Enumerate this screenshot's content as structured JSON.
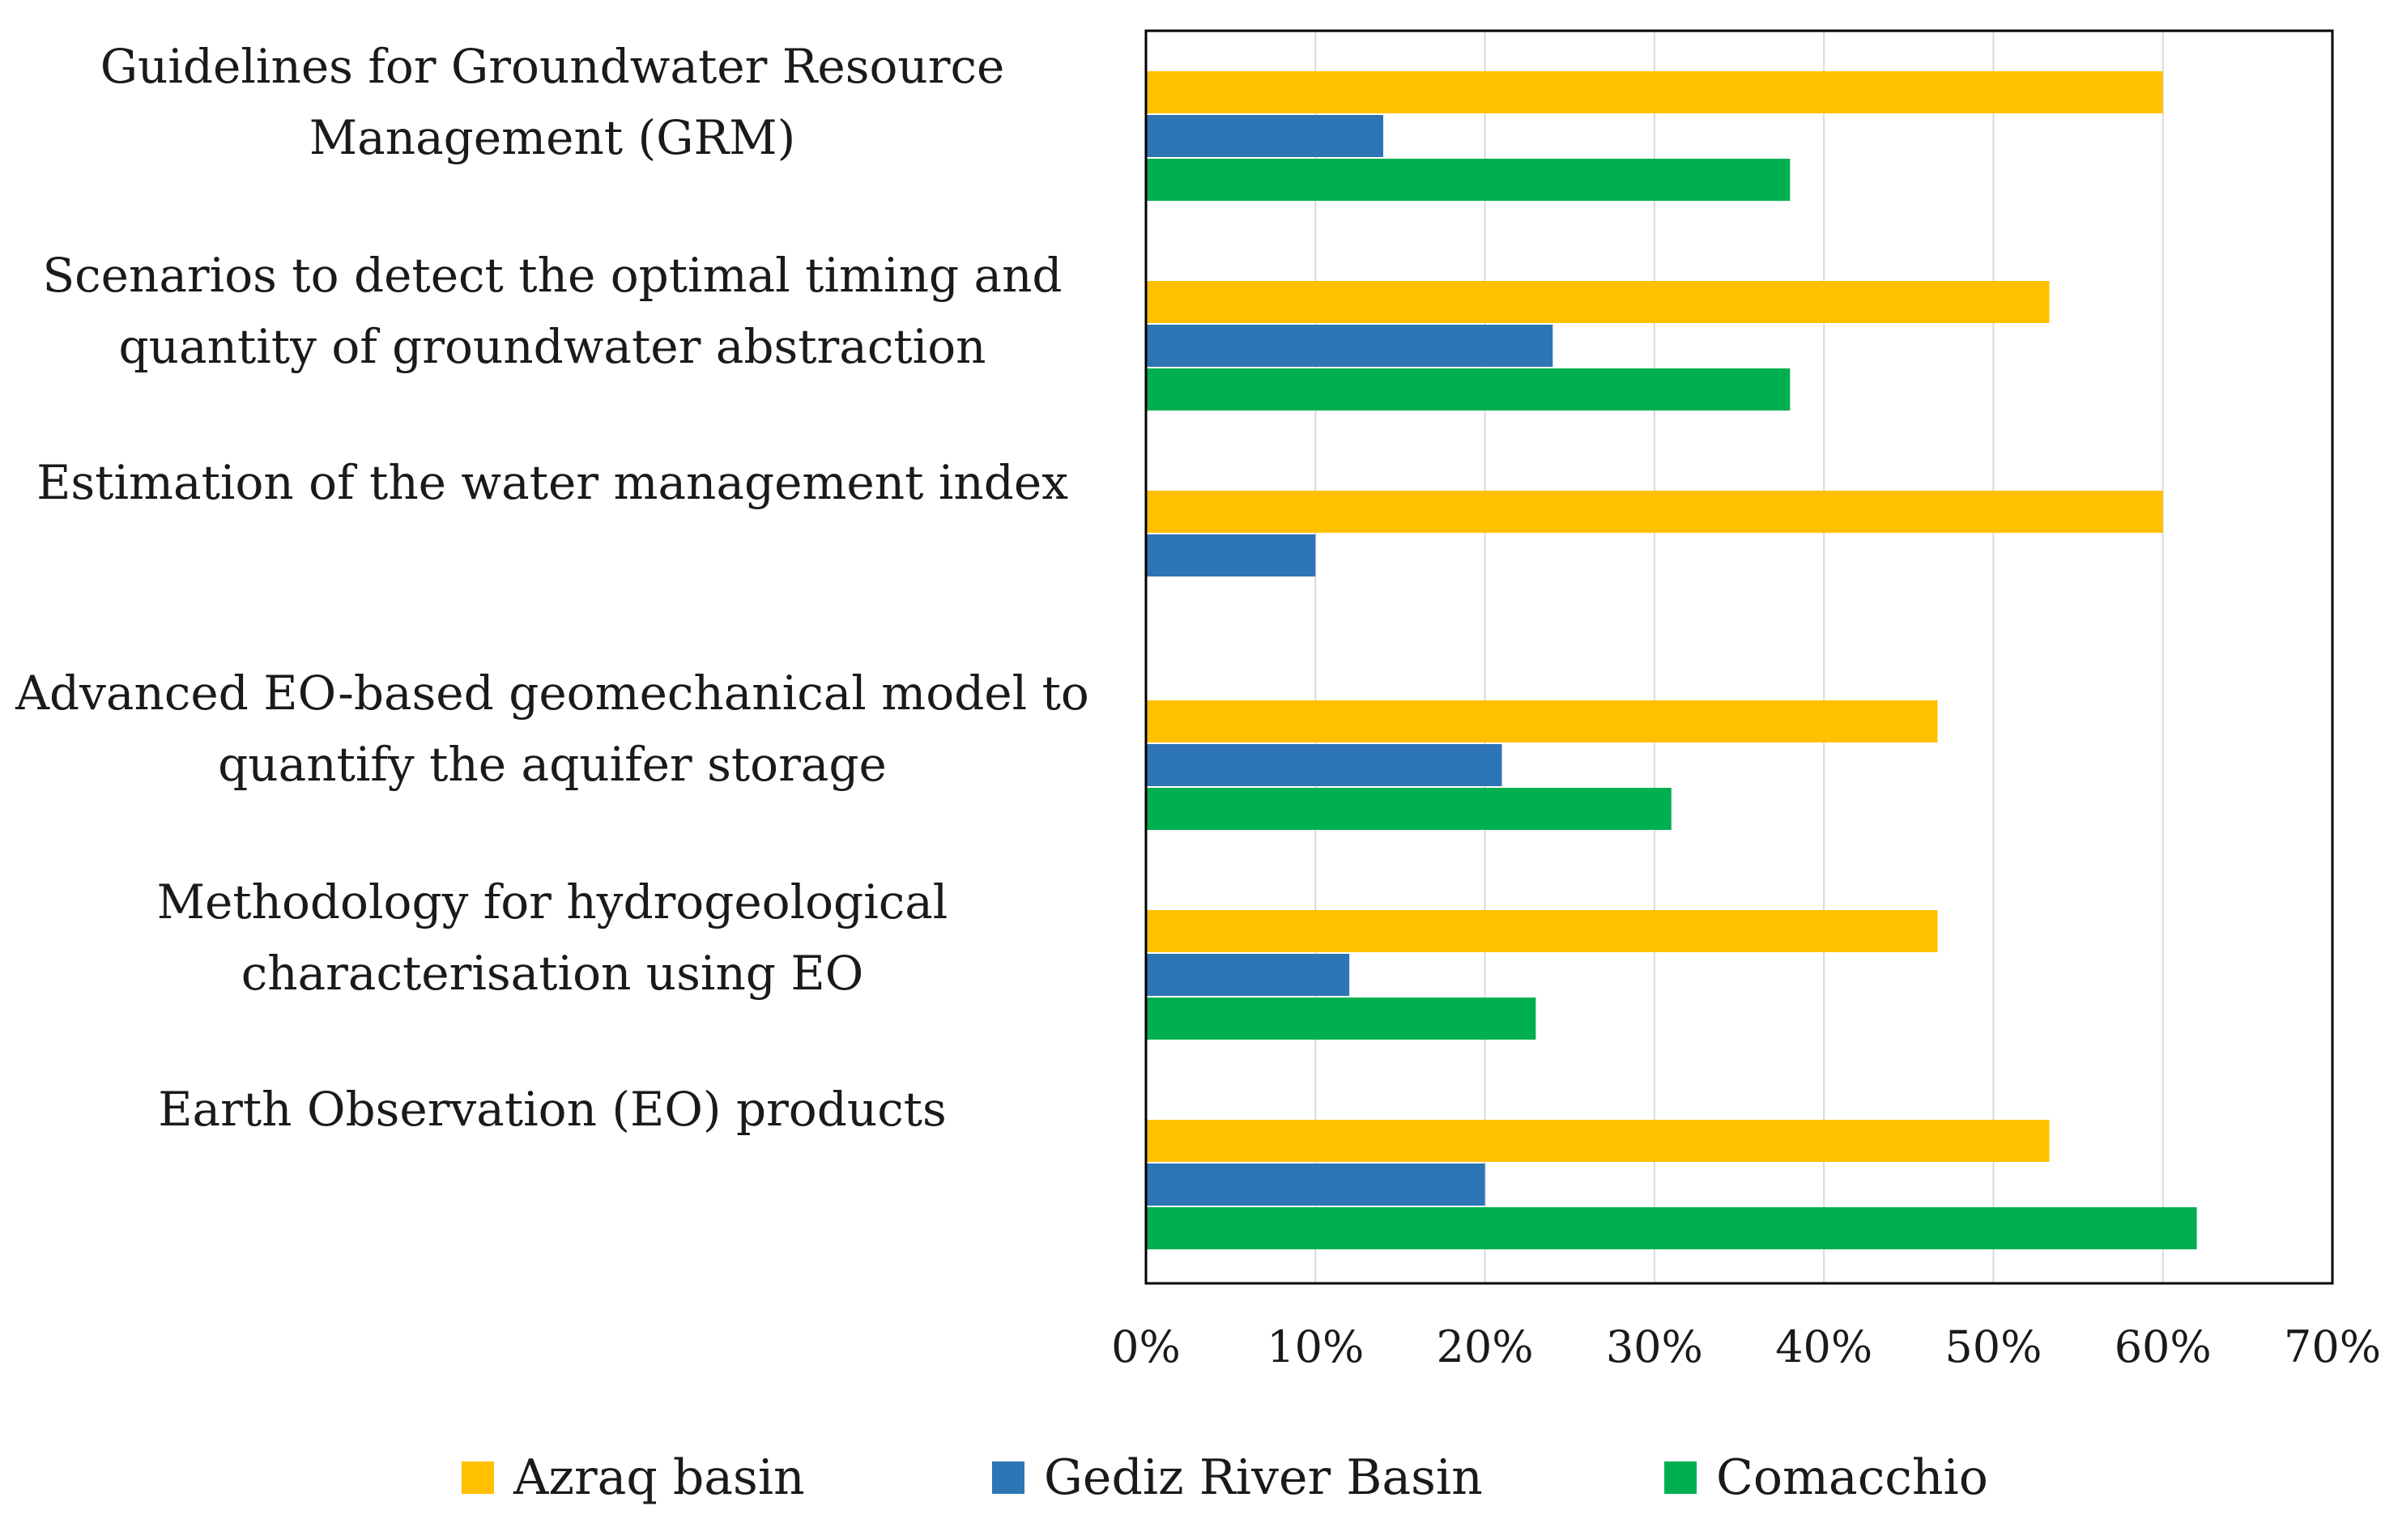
{
  "chart_data": {
    "type": "bar",
    "orientation": "horizontal",
    "categories": [
      [
        "Guidelines for Groundwater Resource",
        "Management (GRM)"
      ],
      [
        "Scenarios to detect the optimal timing and",
        "quantity of groundwater abstraction"
      ],
      [
        "Estimation of the water management index"
      ],
      [
        "Advanced EO-based geomechanical model to",
        "quantify the aquifer storage"
      ],
      [
        "Methodology for hydrogeological",
        "characterisation using EO"
      ],
      [
        "Earth Observation (EO) products"
      ]
    ],
    "series": [
      {
        "name": "Azraq basin",
        "color": "#FFC000",
        "values": [
          60,
          53.3,
          60,
          46.7,
          46.7,
          53.3
        ]
      },
      {
        "name": "Gediz River Basin",
        "color": "#2E75B6",
        "values": [
          14,
          24,
          10,
          21,
          12,
          20
        ]
      },
      {
        "name": "Comacchio",
        "color": "#00B050",
        "values": [
          38,
          38,
          0,
          31,
          23,
          62
        ]
      }
    ],
    "xlim": [
      0,
      70
    ],
    "xticks": [
      0,
      10,
      20,
      30,
      40,
      50,
      60,
      70
    ],
    "xtick_labels": [
      "0%",
      "10%",
      "20%",
      "30%",
      "40%",
      "50%",
      "60%",
      "70%"
    ],
    "grid": true,
    "legend_position": "bottom",
    "title": "",
    "xlabel": "",
    "ylabel": ""
  }
}
